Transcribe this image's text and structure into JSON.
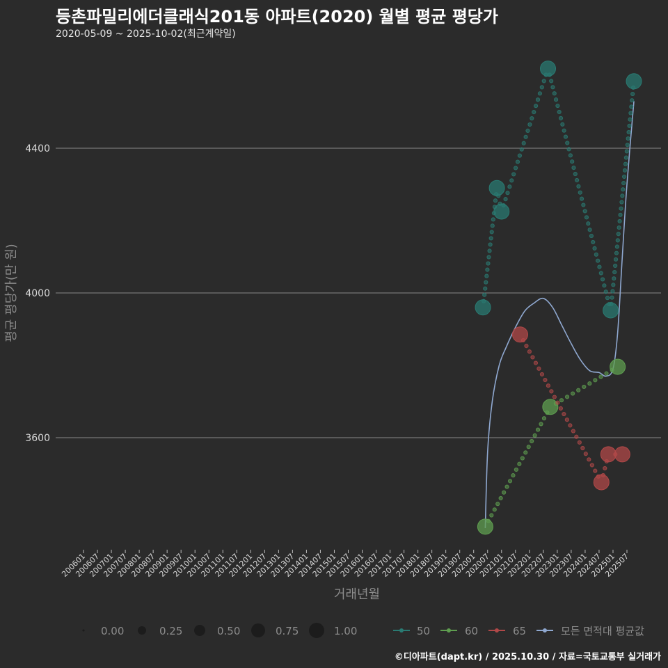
{
  "header": {
    "title": "등촌파밀리에더클래식201동 아파트(2020) 월별 평균 평당가",
    "subtitle": "2020-05-09 ~ 2025-10-02(최근계약일)"
  },
  "footer": {
    "credit": "©디아파트(dapt.kr) / 2025.10.30 / 자료=국토교통부 실거래가"
  },
  "chart_data": {
    "type": "line",
    "title": "등촌파밀리에더클래식201동 아파트(2020) 월별 평균 평당가",
    "subtitle": "2020-05-09 ~ 2025-10-02(최근계약일)",
    "xlabel": "거래년월",
    "ylabel": "평균 평당가(만 원)",
    "ylim": [
      3290,
      4650
    ],
    "yticks": [
      3600,
      4000,
      4400
    ],
    "grid": true,
    "x_range": [
      "200601",
      "202507"
    ],
    "xticks": [
      "200601",
      "200607",
      "200701",
      "200707",
      "200801",
      "200807",
      "200901",
      "200907",
      "201001",
      "201007",
      "201101",
      "201107",
      "201201",
      "201207",
      "201301",
      "201307",
      "201401",
      "201407",
      "201501",
      "201507",
      "201601",
      "201607",
      "201701",
      "201707",
      "201801",
      "201807",
      "201901",
      "201907",
      "202001",
      "202007",
      "202101",
      "202107",
      "202201",
      "202207",
      "202301",
      "202307",
      "202401",
      "202407",
      "202501",
      "202507"
    ],
    "legend_position": "bottom",
    "size_legend": {
      "title": "",
      "values": [
        "0.00",
        "0.25",
        "0.50",
        "0.75",
        "1.00"
      ]
    },
    "series": [
      {
        "name": "50",
        "color": "#2a7a72",
        "points": [
          {
            "x": "202005",
            "y": 3960
          },
          {
            "x": "202011",
            "y": 4290
          },
          {
            "x": "202101",
            "y": 4225
          },
          {
            "x": "202209",
            "y": 4620
          },
          {
            "x": "202412",
            "y": 3952
          },
          {
            "x": "202510",
            "y": 4585
          }
        ]
      },
      {
        "name": "60",
        "color": "#5f9e50",
        "points": [
          {
            "x": "202006",
            "y": 3354
          },
          {
            "x": "202210",
            "y": 3685
          },
          {
            "x": "202503",
            "y": 3796
          }
        ]
      },
      {
        "name": "65",
        "color": "#b04848",
        "points": [
          {
            "x": "202109",
            "y": 3885
          },
          {
            "x": "202408",
            "y": 3477
          },
          {
            "x": "202411",
            "y": 3554
          },
          {
            "x": "202505",
            "y": 3554
          }
        ]
      },
      {
        "name": "모든 면적대 평균값",
        "color": "#8fa8d0",
        "type": "smooth",
        "points": [
          {
            "x": "202006",
            "y": 3350
          },
          {
            "x": "202007",
            "y": 3560
          },
          {
            "x": "202009",
            "y": 3700
          },
          {
            "x": "202012",
            "y": 3800
          },
          {
            "x": "202103",
            "y": 3850
          },
          {
            "x": "202107",
            "y": 3905
          },
          {
            "x": "202111",
            "y": 3950
          },
          {
            "x": "202203",
            "y": 3972
          },
          {
            "x": "202207",
            "y": 3985
          },
          {
            "x": "202211",
            "y": 3960
          },
          {
            "x": "202303",
            "y": 3910
          },
          {
            "x": "202307",
            "y": 3860
          },
          {
            "x": "202311",
            "y": 3815
          },
          {
            "x": "202403",
            "y": 3785
          },
          {
            "x": "202407",
            "y": 3780
          },
          {
            "x": "202410",
            "y": 3770
          },
          {
            "x": "202501",
            "y": 3790
          },
          {
            "x": "202503",
            "y": 3890
          },
          {
            "x": "202505",
            "y": 4100
          },
          {
            "x": "202507",
            "y": 4300
          },
          {
            "x": "202510",
            "y": 4530
          }
        ]
      }
    ]
  },
  "legend": {
    "size_labels": [
      "0.00",
      "0.25",
      "0.50",
      "0.75",
      "1.00"
    ],
    "series_labels": [
      "50",
      "60",
      "65",
      "모든 면적대 평균값"
    ]
  }
}
